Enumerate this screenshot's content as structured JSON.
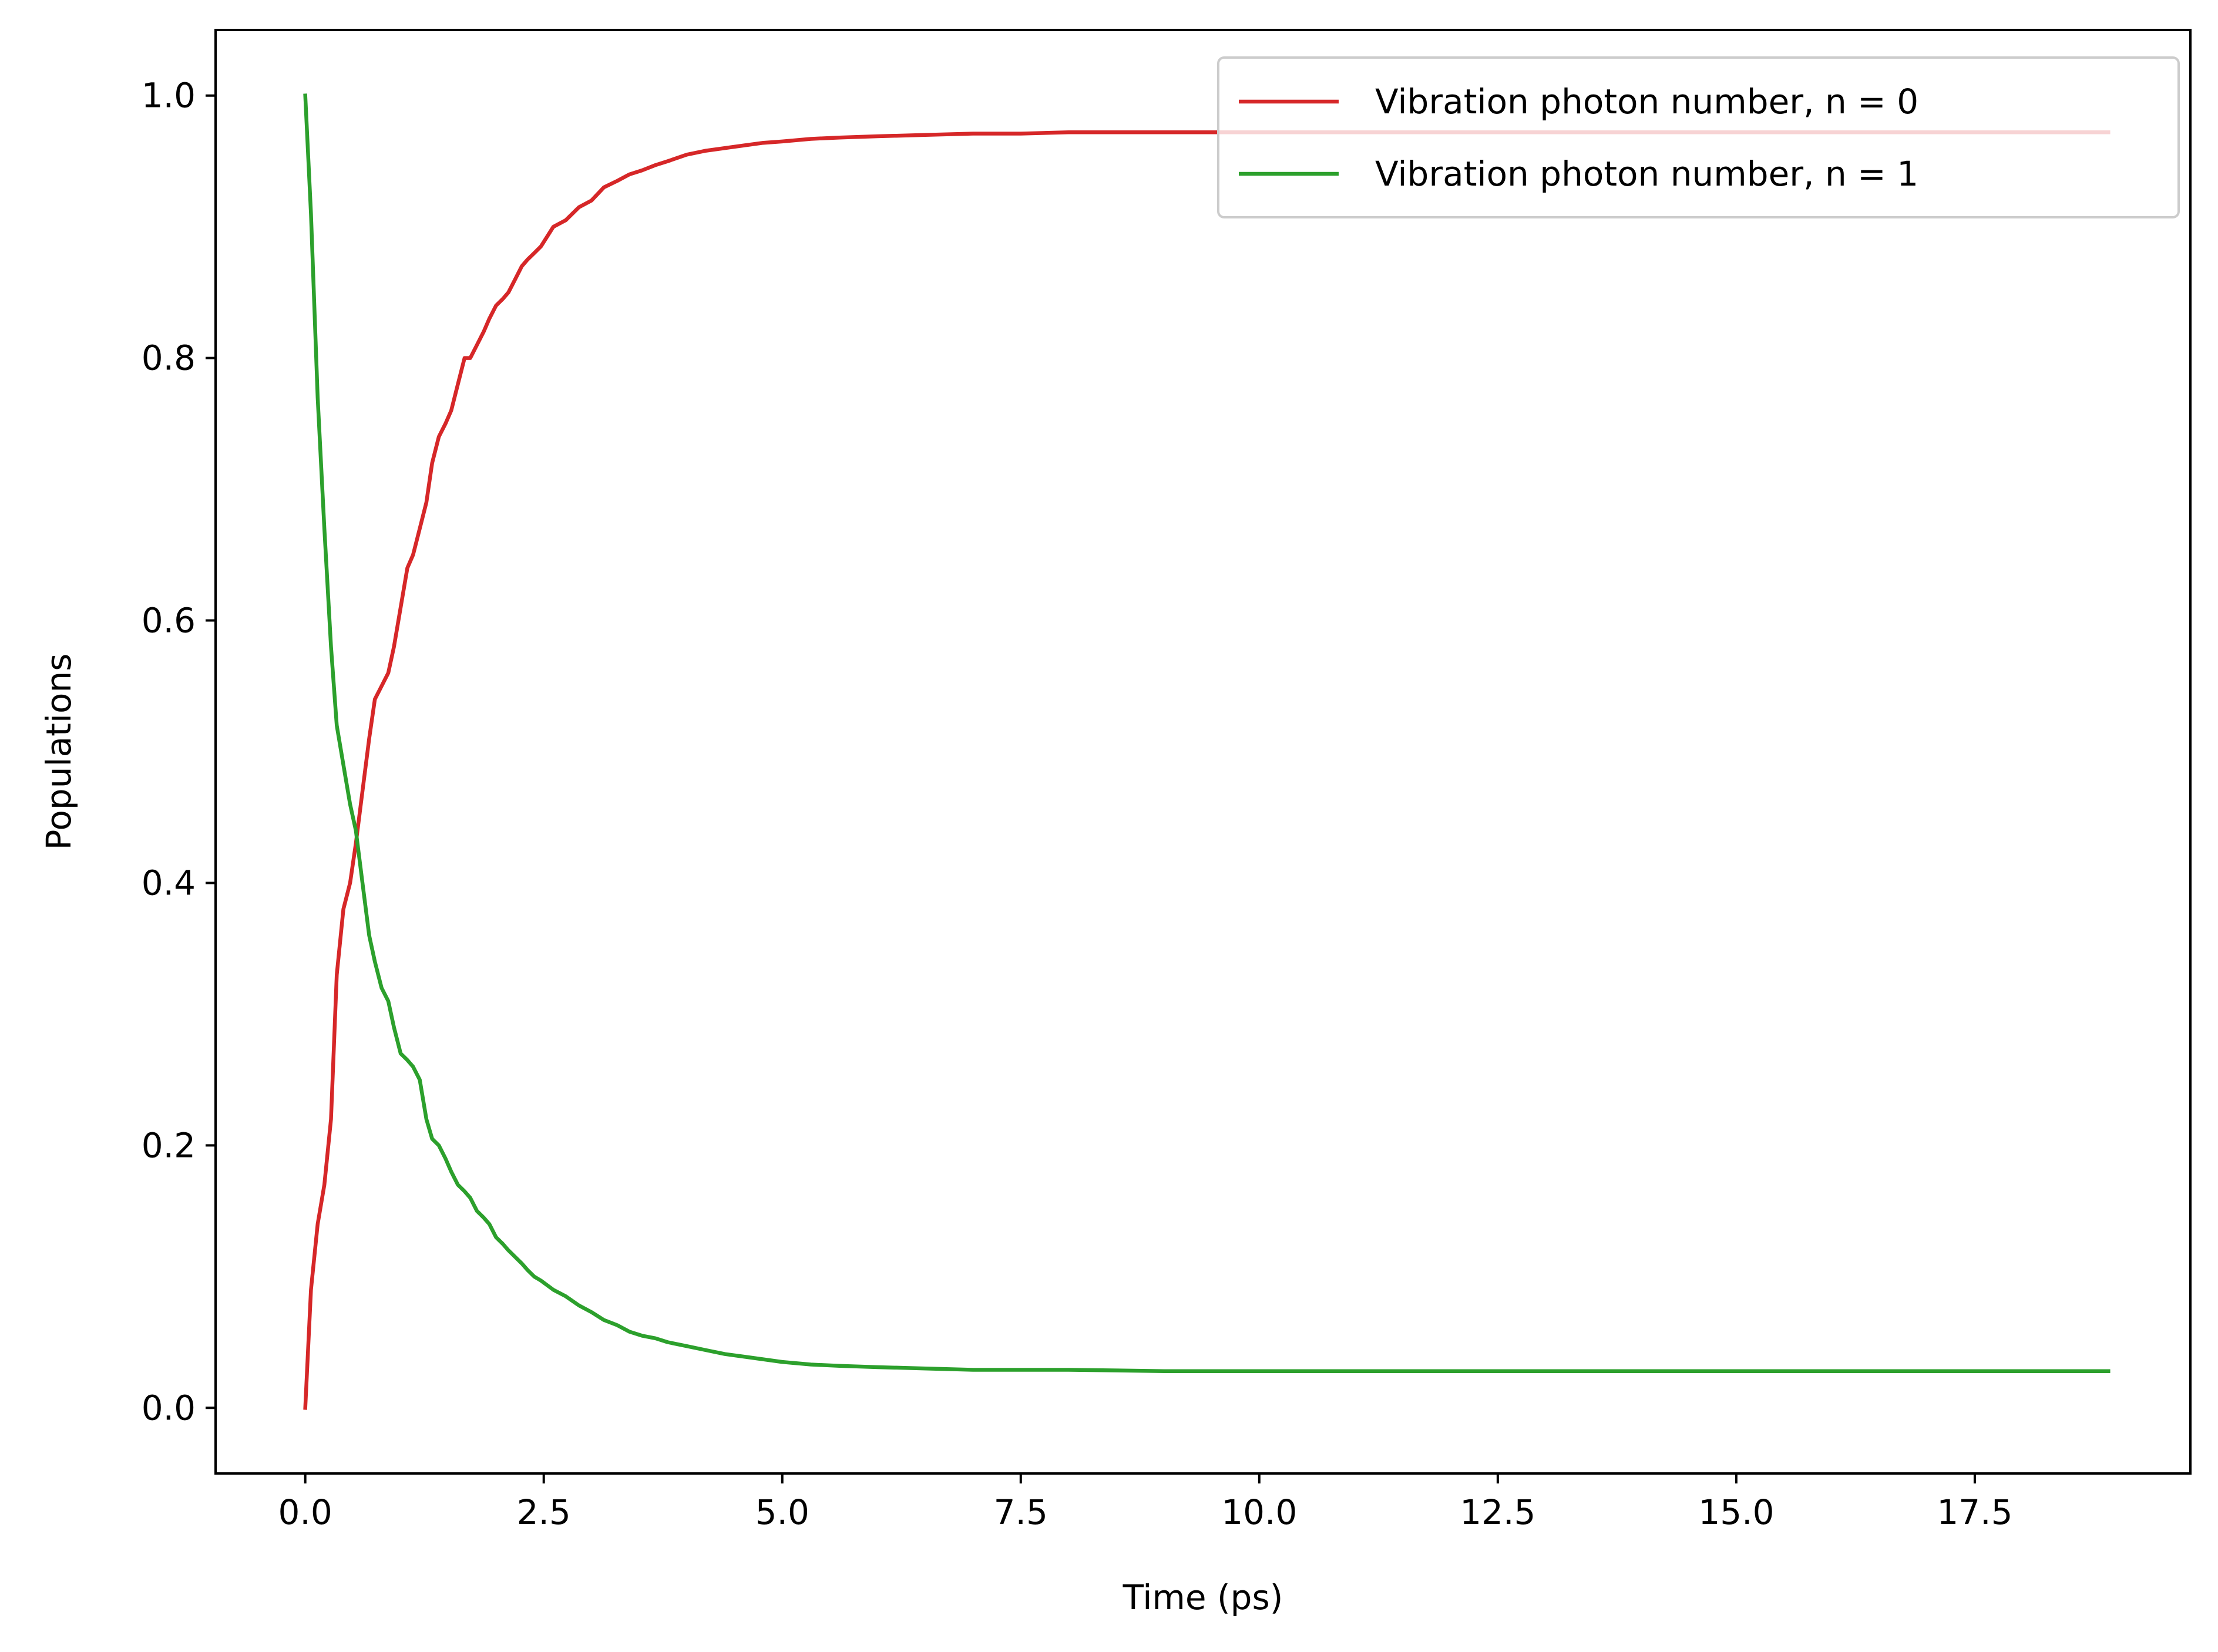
{
  "chart_data": {
    "type": "line",
    "xlabel": "Time (ps)",
    "ylabel": "Populations",
    "xlim": [
      -0.94,
      19.76
    ],
    "ylim": [
      -0.05,
      1.05
    ],
    "x_ticks": [
      0.0,
      2.5,
      5.0,
      7.5,
      10.0,
      12.5,
      15.0,
      17.5
    ],
    "x_tick_labels": [
      "0.0",
      "2.5",
      "5.0",
      "7.5",
      "10.0",
      "12.5",
      "15.0",
      "17.5"
    ],
    "y_ticks": [
      0.0,
      0.2,
      0.4,
      0.6,
      0.8,
      1.0
    ],
    "y_tick_labels": [
      "0.0",
      "0.2",
      "0.4",
      "0.6",
      "0.8",
      "1.0"
    ],
    "grid": false,
    "legend_position": "upper right",
    "series": [
      {
        "name": "Vibration photon number, n = 0",
        "color": "#d62728",
        "x": [
          0.0,
          0.06,
          0.13,
          0.2,
          0.27,
          0.33,
          0.4,
          0.47,
          0.53,
          0.6,
          0.67,
          0.73,
          0.8,
          0.87,
          0.93,
          1.0,
          1.07,
          1.13,
          1.2,
          1.27,
          1.33,
          1.4,
          1.47,
          1.53,
          1.6,
          1.67,
          1.73,
          1.8,
          1.87,
          1.93,
          2.0,
          2.07,
          2.13,
          2.2,
          2.27,
          2.33,
          2.4,
          2.47,
          2.6,
          2.73,
          2.87,
          3.0,
          3.13,
          3.27,
          3.4,
          3.53,
          3.67,
          3.8,
          4.0,
          4.2,
          4.4,
          4.6,
          4.8,
          5.0,
          5.3,
          5.6,
          6.0,
          6.5,
          7.0,
          7.5,
          8.0,
          9.0,
          10.0,
          12.0,
          14.0,
          16.0,
          18.0,
          18.9
        ],
        "y": [
          0.0,
          0.09,
          0.14,
          0.17,
          0.22,
          0.33,
          0.38,
          0.4,
          0.43,
          0.47,
          0.51,
          0.54,
          0.55,
          0.56,
          0.58,
          0.61,
          0.64,
          0.65,
          0.67,
          0.69,
          0.72,
          0.74,
          0.75,
          0.76,
          0.78,
          0.8,
          0.8,
          0.81,
          0.82,
          0.83,
          0.84,
          0.845,
          0.85,
          0.86,
          0.87,
          0.875,
          0.88,
          0.885,
          0.9,
          0.905,
          0.915,
          0.92,
          0.93,
          0.935,
          0.94,
          0.943,
          0.947,
          0.95,
          0.955,
          0.958,
          0.96,
          0.962,
          0.964,
          0.965,
          0.967,
          0.968,
          0.969,
          0.97,
          0.971,
          0.971,
          0.972,
          0.972,
          0.972,
          0.972,
          0.972,
          0.972,
          0.972,
          0.972
        ]
      },
      {
        "name": "Vibration photon number, n = 1",
        "color": "#2ca02c",
        "x": [
          0.0,
          0.06,
          0.13,
          0.2,
          0.27,
          0.33,
          0.4,
          0.47,
          0.53,
          0.6,
          0.67,
          0.73,
          0.8,
          0.87,
          0.93,
          1.0,
          1.07,
          1.13,
          1.2,
          1.27,
          1.33,
          1.4,
          1.47,
          1.53,
          1.6,
          1.67,
          1.73,
          1.8,
          1.87,
          1.93,
          2.0,
          2.07,
          2.13,
          2.2,
          2.27,
          2.33,
          2.4,
          2.47,
          2.6,
          2.73,
          2.87,
          3.0,
          3.13,
          3.27,
          3.4,
          3.53,
          3.67,
          3.8,
          4.0,
          4.2,
          4.4,
          4.6,
          4.8,
          5.0,
          5.3,
          5.6,
          6.0,
          6.5,
          7.0,
          7.5,
          8.0,
          9.0,
          10.0,
          12.0,
          14.0,
          16.0,
          18.0,
          18.9
        ],
        "y": [
          1.0,
          0.91,
          0.77,
          0.67,
          0.58,
          0.52,
          0.49,
          0.46,
          0.44,
          0.4,
          0.36,
          0.34,
          0.32,
          0.31,
          0.29,
          0.27,
          0.265,
          0.26,
          0.25,
          0.22,
          0.205,
          0.2,
          0.19,
          0.18,
          0.17,
          0.165,
          0.16,
          0.15,
          0.145,
          0.14,
          0.13,
          0.125,
          0.12,
          0.115,
          0.11,
          0.105,
          0.1,
          0.097,
          0.09,
          0.085,
          0.078,
          0.073,
          0.067,
          0.063,
          0.058,
          0.055,
          0.053,
          0.05,
          0.047,
          0.044,
          0.041,
          0.039,
          0.037,
          0.035,
          0.033,
          0.032,
          0.031,
          0.03,
          0.029,
          0.029,
          0.029,
          0.028,
          0.028,
          0.028,
          0.028,
          0.028,
          0.028,
          0.028
        ]
      }
    ]
  }
}
